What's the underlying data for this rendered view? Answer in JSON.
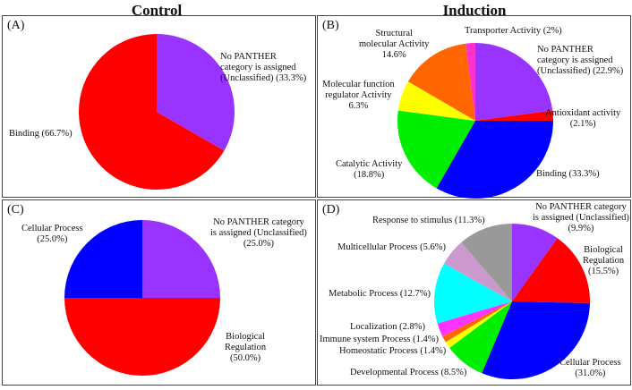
{
  "column_titles": {
    "left": "Control",
    "right": "Induction"
  },
  "chart_data": [
    {
      "type": "pie",
      "panel_label": "(A)",
      "slices": [
        {
          "label": "No PANTHER category is assigned (Unclassified)",
          "value": 33.3,
          "display": "No PANTHER\ncategory is assigned\n(Unclassified) (33.3%)",
          "color": "#9933ff"
        },
        {
          "label": "Binding",
          "value": 66.7,
          "display": "Binding (66.7%)",
          "color": "#ff0000"
        }
      ]
    },
    {
      "type": "pie",
      "panel_label": "(B)",
      "slices": [
        {
          "label": "No PANTHER category is assigned (Unclassified)",
          "value": 22.9,
          "display": "No PANTHER\ncategory is assigned\n(Unclassified) (22.9%)",
          "color": "#9933ff"
        },
        {
          "label": "Antioxidant activity",
          "value": 2.1,
          "display": "Antioxidant activity\n(2.1%)",
          "color": "#ff0000"
        },
        {
          "label": "Binding",
          "value": 33.3,
          "display": "Binding (33.3%)",
          "color": "#0000ff"
        },
        {
          "label": "Catalytic Activity",
          "value": 18.8,
          "display": "Catalytic Activity\n(18.8%)",
          "color": "#00ee00"
        },
        {
          "label": "Molecular function regulator Activity",
          "value": 6.3,
          "display": "Molecular function\nregulator Activity\n6.3%",
          "color": "#ffff00"
        },
        {
          "label": "Structural molecular Activity",
          "value": 14.6,
          "display": "Structural\nmolecular Activity\n14.6%",
          "color": "#ff6600"
        },
        {
          "label": "Transporter Activity",
          "value": 2.0,
          "display": "Transporter Activity (2%)",
          "color": "#ff33cc"
        }
      ]
    },
    {
      "type": "pie",
      "panel_label": "(C)",
      "slices": [
        {
          "label": "No PANTHER category is assigned (Unclassified)",
          "value": 25.0,
          "display": "No PANTHER category\nis assigned (Unclassified)\n(25.0%)",
          "color": "#9933ff"
        },
        {
          "label": "Biological Regulation",
          "value": 50.0,
          "display": "Biological\nRegulation\n(50.0%)",
          "color": "#ff0000"
        },
        {
          "label": "Cellular Process",
          "value": 25.0,
          "display": "Cellular Process\n(25.0%)",
          "color": "#0000ff"
        }
      ]
    },
    {
      "type": "pie",
      "panel_label": "(D)",
      "slices": [
        {
          "label": "No PANTHER category is assigned (Unclassified)",
          "value": 9.9,
          "display": "No PANTHER category\nis assigned (Unclassified)\n(9.9%)",
          "color": "#9933ff"
        },
        {
          "label": "Biological Regulation",
          "value": 15.5,
          "display": "Biological\nRegulation\n(15.5%)",
          "color": "#ff0000"
        },
        {
          "label": "Cellular Process",
          "value": 31.0,
          "display": "Cellular Process\n(31.0%)",
          "color": "#0000ff"
        },
        {
          "label": "Developmental Process",
          "value": 8.5,
          "display": "Developmental Process (8.5%)",
          "color": "#00ee00"
        },
        {
          "label": "Homeostatic Process",
          "value": 1.4,
          "display": "Homeostatic Process (1.4%)",
          "color": "#ffff00"
        },
        {
          "label": "Immune system Process",
          "value": 1.4,
          "display": "Immune system  Process (1.4%)",
          "color": "#ff6600"
        },
        {
          "label": "Localization",
          "value": 2.8,
          "display": "Localization (2.8%)",
          "color": "#ff33ff"
        },
        {
          "label": "Metabolic Process",
          "value": 12.7,
          "display": "Metabolic Process (12.7%)",
          "color": "#00ffff"
        },
        {
          "label": "Multicellular Process",
          "value": 5.6,
          "display": "Multicellular Process (5.6%)",
          "color": "#cc99cc"
        },
        {
          "label": "Response to stimulus",
          "value": 11.3,
          "display": "Response to stimulus (11.3%)",
          "color": "#999999"
        }
      ]
    }
  ]
}
